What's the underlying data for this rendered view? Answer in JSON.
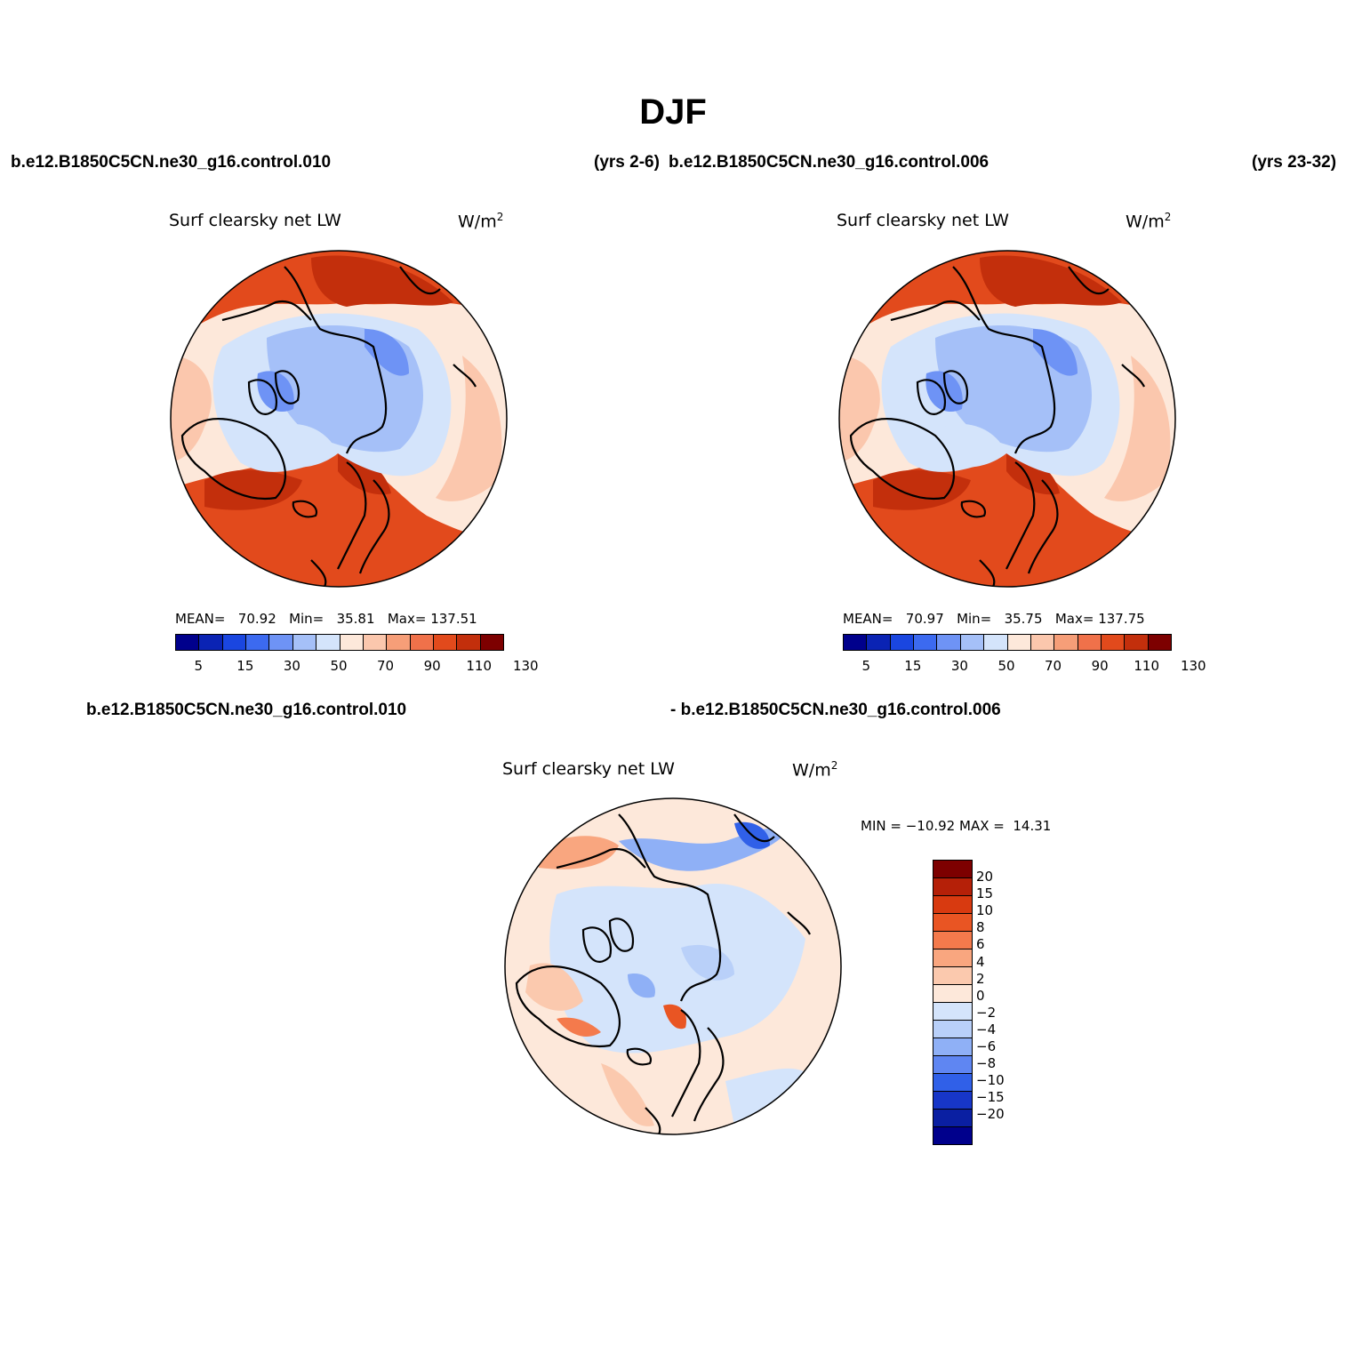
{
  "title": "DJF",
  "panel_a": {
    "case_left": "b.e12.B1850C5CN.ne30_g16.control.010",
    "case_right": "(yrs 2-6)",
    "variable": "Surf clearsky net LW",
    "units": "W/m",
    "units_sup": "2",
    "mean_label": "MEAN=",
    "mean": "70.92",
    "min_label": "Min=",
    "min": "35.81",
    "max_label": "Max=",
    "max": "137.51"
  },
  "panel_b": {
    "case_left": "b.e12.B1850C5CN.ne30_g16.control.006",
    "case_right": "(yrs 23-32)",
    "variable": "Surf clearsky net LW",
    "units": "W/m",
    "units_sup": "2",
    "mean_label": "MEAN=",
    "mean": "70.97",
    "min_label": "Min=",
    "min": "35.75",
    "max_label": "Max=",
    "max": "137.75"
  },
  "panel_diff": {
    "case_left": "b.e12.B1850C5CN.ne30_g16.control.010",
    "case_right": "- b.e12.B1850C5CN.ne30_g16.control.006",
    "variable": "Surf clearsky net LW",
    "units": "W/m",
    "units_sup": "2",
    "min_label": "MIN =",
    "min": "−10.92",
    "max_label": "MAX =",
    "max": "14.31"
  },
  "colorbar_abs": {
    "labels": [
      "5",
      "15",
      "30",
      "50",
      "70",
      "90",
      "110",
      "130"
    ],
    "colors": [
      "#00008c",
      "#0a23b4",
      "#1a46e0",
      "#3c6af0",
      "#6e93f5",
      "#a5c0f8",
      "#d4e4fb",
      "#fde8da",
      "#fbc7ad",
      "#f69e78",
      "#f0714a",
      "#e24a1c",
      "#c32f0c",
      "#7d0000"
    ]
  },
  "colorbar_diff": {
    "labels": [
      "20",
      "15",
      "10",
      "8",
      "6",
      "4",
      "2",
      "0",
      "−2",
      "−4",
      "−6",
      "−8",
      "−10",
      "−15",
      "−20"
    ],
    "colors": [
      "#7d0000",
      "#b52008",
      "#d83a10",
      "#e95523",
      "#f47a4c",
      "#f9a67f",
      "#fbc9ae",
      "#fde8da",
      "#d4e4fb",
      "#b9d0f9",
      "#8fb0f6",
      "#5f86f2",
      "#3060e8",
      "#1736c8",
      "#0a1fa2",
      "#00008c"
    ]
  },
  "map_colors": {
    "ocean_warm": "#e24a1c",
    "ocean_hot": "#c32f0c",
    "mid_warm": "#fbc7ad",
    "light_warm": "#fde8da",
    "pale_blue": "#d4e4fb",
    "mid_blue": "#a5c0f8",
    "deep_blue": "#6e93f5"
  }
}
